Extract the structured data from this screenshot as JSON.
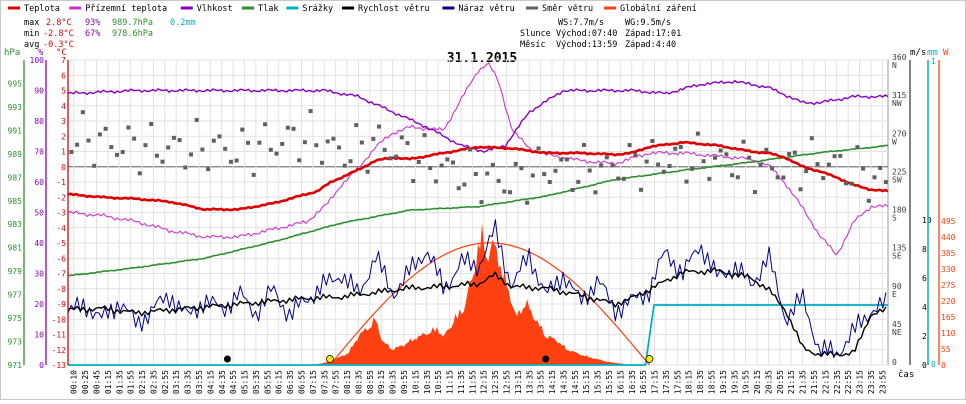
{
  "legend": [
    {
      "label": "Teplota",
      "color": "#dd0000"
    },
    {
      "label": "Přízemní teplota",
      "color": "#cc33cc"
    },
    {
      "label": "Vlhkost",
      "color": "#8a00c0"
    },
    {
      "label": "Tlak",
      "color": "#2f8f2f"
    },
    {
      "label": "Srážky",
      "color": "#00b0c8"
    },
    {
      "label": "Rychlost větru",
      "color": "#000000"
    },
    {
      "label": "Náraz větru",
      "color": "#000090"
    },
    {
      "label": "Směr větru",
      "color": "#606060"
    },
    {
      "label": "Globální záření",
      "color": "#ff4010"
    }
  ],
  "stats": {
    "max": {
      "label": "max",
      "temp": "2.8°C",
      "hum": "93%",
      "press": "989.7hPa",
      "rain": "0.2mm"
    },
    "min": {
      "label": "min",
      "temp": "-2.8°C",
      "hum": "67%",
      "press": "978.6hPa"
    },
    "avg": {
      "label": "avg",
      "temp": "-0.3°C"
    }
  },
  "info": {
    "ws": "WS:7.7m/s",
    "wg": "WG:9.5m/s",
    "sun_label": "Slunce",
    "sun_rise": "Východ:07:40",
    "sun_set": "Západ:17:01",
    "moon_label": "Měsíc",
    "moon_rise": "Východ:13:59",
    "moon_set": "Západ:4:40"
  },
  "chart_data": {
    "type": "line",
    "title": "31.1.2015",
    "x_unit": "čas",
    "x_ticks": [
      "00:10",
      "00:25",
      "00:45",
      "01:15",
      "01:35",
      "01:55",
      "02:15",
      "02:35",
      "02:55",
      "03:15",
      "03:35",
      "03:55",
      "04:15",
      "04:35",
      "04:55",
      "05:15",
      "05:35",
      "05:55",
      "06:15",
      "06:35",
      "06:55",
      "07:15",
      "07:35",
      "07:55",
      "08:15",
      "08:35",
      "08:55",
      "09:15",
      "09:35",
      "09:55",
      "10:15",
      "10:35",
      "10:55",
      "11:15",
      "11:35",
      "11:55",
      "12:15",
      "12:35",
      "12:55",
      "13:15",
      "13:35",
      "13:55",
      "14:15",
      "14:35",
      "14:55",
      "15:15",
      "15:35",
      "15:55",
      "16:15",
      "16:35",
      "16:55",
      "17:15",
      "17:35",
      "17:55",
      "18:15",
      "18:35",
      "18:55",
      "19:15",
      "19:35",
      "19:55",
      "20:15",
      "20:35",
      "20:55",
      "21:15",
      "21:35",
      "21:55",
      "22:15",
      "22:35",
      "22:55",
      "23:15",
      "23:35",
      "23:55"
    ],
    "axes": {
      "pressure": {
        "unit": "hPa",
        "range": [
          971,
          997
        ],
        "ticks": [
          "995",
          "993",
          "991",
          "989",
          "987",
          "985",
          "983",
          "981",
          "979",
          "977",
          "975",
          "973",
          "971"
        ],
        "color": "#2f8f2f"
      },
      "humidity": {
        "unit": "%",
        "range": [
          0,
          100
        ],
        "ticks": [
          "100",
          "90",
          "80",
          "70",
          "60",
          "50",
          "40",
          "30",
          "20",
          "10",
          "0"
        ],
        "color": "#8a00c0"
      },
      "temperature": {
        "unit": "°C",
        "range": [
          -13,
          7
        ],
        "ticks": [
          "7",
          "6",
          "5",
          "4",
          "3",
          "2",
          "1",
          "0",
          "-1",
          "-2",
          "-3",
          "-4",
          "-5",
          "-6",
          "-7",
          "-8",
          "-9",
          "-10",
          "-11",
          "-12",
          "-13"
        ],
        "color": "#dd0000"
      },
      "wind_dir": {
        "unit": "°",
        "range": [
          0,
          360
        ],
        "ticks": [
          {
            "v": "360",
            "d": "N"
          },
          {
            "v": "315",
            "d": "NW"
          },
          {
            "v": "270",
            "d": "W"
          },
          {
            "v": "225",
            "d": "SW"
          },
          {
            "v": "180",
            "d": "S"
          },
          {
            "v": "135",
            "d": "SE"
          },
          {
            "v": "90",
            "d": "E"
          },
          {
            "v": "45",
            "d": "NE"
          },
          {
            "v": "0",
            "d": ""
          }
        ],
        "color": "#404040"
      },
      "wind_speed": {
        "unit": "m/s",
        "range": [
          0,
          10
        ],
        "ticks": [
          "10",
          "8",
          "6",
          "4",
          "2",
          "0"
        ],
        "color": "#000000"
      },
      "rain": {
        "unit": "mm",
        "range": [
          0,
          1
        ],
        "ticks": [
          "1",
          "0"
        ],
        "color": "#00b0c8"
      },
      "radiation": {
        "unit": "W",
        "range": [
          0,
          550
        ],
        "ticks": [
          "495",
          "440",
          "385",
          "330",
          "275",
          "220",
          "165",
          "110",
          "55",
          "0"
        ],
        "color": "#ff4010"
      }
    },
    "series": [
      {
        "name": "Teplota",
        "axis": "temperature",
        "color": "#dd0000",
        "x": [
          0,
          1,
          2,
          3,
          4,
          5,
          6,
          7.3,
          7.7,
          8,
          8.5,
          9,
          9.5,
          10,
          11,
          12,
          13,
          14,
          15,
          16,
          16.5,
          17,
          18,
          19,
          19.5,
          20,
          20.5,
          21,
          21.5,
          22,
          22.5,
          23,
          23.5,
          24
        ],
        "y": [
          -1.8,
          -2.0,
          -2.1,
          -2.3,
          -2.8,
          -2.8,
          -2.4,
          -1.6,
          -1.0,
          -0.7,
          -0.2,
          0.4,
          0.6,
          0.5,
          0.9,
          1.3,
          1.2,
          0.9,
          0.9,
          0.8,
          0.9,
          1.3,
          1.6,
          1.4,
          1.2,
          1.0,
          0.9,
          0.6,
          0.0,
          -0.3,
          -0.7,
          -1.2,
          -1.5,
          -1.6
        ]
      },
      {
        "name": "Přízemní teplota",
        "axis": "temperature",
        "color": "#cc33cc",
        "x": [
          0,
          1,
          2,
          3,
          4,
          5,
          6,
          7,
          7.6,
          8,
          8.5,
          9,
          9.5,
          10,
          11,
          11.5,
          12,
          12.3,
          12.6,
          13,
          13.5,
          14,
          15,
          16,
          17,
          18,
          19,
          20,
          20.5,
          21,
          21.5,
          22,
          22.5,
          23,
          23.5,
          24
        ],
        "y": [
          -3.0,
          -3.2,
          -3.6,
          -4.2,
          -4.6,
          -4.6,
          -4.1,
          -3.6,
          -2.4,
          -1.2,
          -0.1,
          1.3,
          2.2,
          2.6,
          2.4,
          4.4,
          6.3,
          6.8,
          5.6,
          2.4,
          1.2,
          0.8,
          0.4,
          0.2,
          0.9,
          0.9,
          0.7,
          0.5,
          0.1,
          -1.1,
          -2.7,
          -4.5,
          -5.8,
          -3.6,
          -2.6,
          -2.6
        ]
      },
      {
        "name": "Vlhkost",
        "axis": "humidity",
        "color": "#8a00c0",
        "x": [
          0,
          2,
          4,
          6,
          7.5,
          8.5,
          9.5,
          10.5,
          11.5,
          12.2,
          12.8,
          13.5,
          14.5,
          15.5,
          16.5,
          17.5,
          18.5,
          19.5,
          20.5,
          21.5,
          22,
          23,
          24
        ],
        "y": [
          89,
          90,
          90,
          90,
          90,
          88,
          83,
          78,
          72,
          70,
          72,
          83,
          90,
          90,
          90,
          89,
          92,
          93,
          91,
          86,
          86,
          88,
          88
        ]
      },
      {
        "name": "Tlak",
        "axis": "pressure",
        "color": "#2f8f2f",
        "x": [
          0,
          2,
          4,
          6,
          8,
          10,
          12,
          14,
          16,
          18,
          20,
          21,
          22,
          23,
          24
        ],
        "y": [
          978.6,
          979.3,
          980.1,
          981.5,
          983.1,
          984.2,
          984.5,
          985.4,
          986.8,
          987.6,
          988.3,
          988.7,
          989.1,
          989.4,
          989.7
        ]
      },
      {
        "name": "Rychlost větru",
        "axis": "wind_speed",
        "color": "#000000",
        "x": [
          0,
          1,
          2,
          3,
          4,
          5,
          6,
          7,
          8,
          9,
          10,
          11,
          12,
          12.5,
          13,
          14,
          15,
          16,
          16.5,
          17,
          18,
          19,
          20,
          20.5,
          21,
          21.5,
          22,
          23,
          23.5,
          24
        ],
        "y": [
          3.8,
          3.9,
          3.6,
          3.8,
          4.0,
          4.2,
          4.4,
          4.6,
          4.7,
          5.0,
          5.3,
          5.4,
          5.6,
          6.2,
          5.4,
          5.3,
          4.8,
          4.2,
          4.6,
          5.2,
          6.4,
          6.5,
          6.0,
          5.2,
          3.8,
          1.2,
          0.7,
          0.8,
          3.5,
          3.8
        ]
      },
      {
        "name": "Náraz větru",
        "axis": "wind_speed",
        "color": "#000090",
        "x": [
          0,
          0.5,
          1,
          1.5,
          2,
          2.5,
          3,
          3.5,
          4,
          4.5,
          5,
          5.5,
          6,
          6.5,
          7,
          7.5,
          8,
          8.5,
          9,
          9.5,
          10,
          10.5,
          11,
          11.5,
          12,
          12.5,
          13,
          13.5,
          14,
          14.5,
          15,
          15.5,
          16,
          16.5,
          17,
          17.5,
          18,
          18.5,
          19,
          19.5,
          20,
          20.5,
          21,
          21.5,
          22,
          22.5,
          23,
          23.5,
          24
        ],
        "y": [
          3.6,
          4.2,
          3.1,
          4.4,
          2.8,
          3.9,
          4.8,
          3.3,
          4.5,
          3.8,
          4.9,
          3.6,
          5.2,
          3.4,
          4.6,
          5.5,
          6.3,
          4.8,
          7.5,
          4.9,
          6.4,
          8.0,
          5.2,
          7.1,
          6.8,
          9.3,
          5.4,
          7.6,
          4.7,
          6.3,
          4.3,
          5.9,
          3.8,
          4.4,
          5.1,
          7.9,
          6.2,
          8.4,
          6.0,
          6.8,
          5.5,
          7.5,
          3.2,
          4.6,
          1.0,
          0.8,
          2.3,
          3.8,
          4.2
        ]
      },
      {
        "name": "Směr větru",
        "axis": "wind_dir",
        "color": "#606060",
        "x": [
          0,
          1,
          2,
          3,
          4,
          5,
          6,
          7,
          8,
          9,
          10,
          11,
          12,
          13,
          14,
          15,
          16,
          17,
          18,
          19,
          20,
          21,
          22,
          23,
          24
        ],
        "y": [
          272,
          262,
          258,
          255,
          258,
          252,
          262,
          270,
          250,
          262,
          248,
          232,
          222,
          215,
          232,
          228,
          232,
          240,
          242,
          242,
          235,
          232,
          240,
          230,
          212
        ]
      },
      {
        "name": "Globální záření",
        "axis": "radiation",
        "color": "#ff4010",
        "x": [
          7.2,
          7.7,
          8.2,
          8.5,
          8.8,
          9.0,
          9.2,
          9.5,
          9.8,
          10.2,
          10.5,
          10.8,
          11.0,
          11.3,
          11.6,
          11.9,
          12.1,
          12.3,
          12.5,
          12.7,
          12.9,
          13.1,
          13.4,
          13.7,
          14.0,
          14.3,
          14.6,
          15.0,
          15.4,
          15.8,
          16.2,
          16.5
        ],
        "y": [
          0,
          15,
          45,
          110,
          145,
          175,
          90,
          60,
          75,
          105,
          120,
          140,
          105,
          175,
          220,
          370,
          505,
          410,
          470,
          350,
          290,
          180,
          240,
          170,
          110,
          95,
          60,
          40,
          25,
          12,
          5,
          0
        ]
      },
      {
        "name": "Srážky",
        "axis": "rain",
        "color": "#00b0c8",
        "x": [
          0,
          16.9,
          17.15,
          24
        ],
        "y": [
          0,
          0,
          0.2,
          0.2
        ]
      }
    ]
  }
}
